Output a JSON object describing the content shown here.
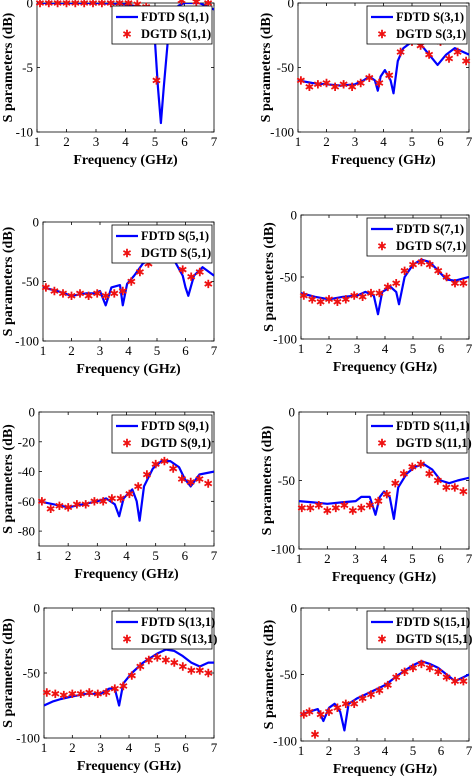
{
  "colors": {
    "fdtd": "#0000ff",
    "dgtd": "#ee1111",
    "axis": "#000000"
  },
  "chart_data": [
    {
      "type": "line",
      "x_label": "Frequency (GHz)",
      "y_label": "S parameters (dB)",
      "xlim": [
        1,
        7
      ],
      "ylim": [
        -10,
        0
      ],
      "x_ticks": [
        1,
        2,
        3,
        4,
        5,
        6,
        7
      ],
      "y_ticks": [
        0,
        -5,
        -10
      ],
      "legend_position": "top-right",
      "series": [
        {
          "name": "FDTD S(1,1)",
          "style": "line",
          "x": [
            1,
            2,
            3,
            4,
            4.5,
            4.8,
            5.0,
            5.1,
            5.2,
            5.3,
            5.45,
            5.6,
            5.8,
            6.0,
            6.5,
            7
          ],
          "y": [
            0,
            0,
            0,
            -0.1,
            -0.3,
            -1,
            -3,
            -6.5,
            -9.3,
            -6.5,
            -2.5,
            -0.8,
            -0.2,
            0,
            0,
            -0.5
          ]
        },
        {
          "name": "DGTD S(1,1)",
          "style": "marker",
          "x": [
            1.1,
            1.4,
            1.7,
            2.0,
            2.3,
            2.6,
            2.9,
            3.2,
            3.5,
            3.8,
            4.1,
            4.4,
            4.7,
            5.05,
            5.35,
            5.9,
            6.4,
            6.8
          ],
          "y": [
            0,
            0,
            0,
            0,
            0,
            0,
            0,
            0,
            0,
            0,
            0,
            -0.1,
            -0.3,
            -6,
            -2.5,
            0.2,
            0.1,
            0
          ]
        }
      ]
    },
    {
      "type": "line",
      "x_label": "Frequency (GHz)",
      "y_label": "S parameters (dB)",
      "xlim": [
        1,
        7
      ],
      "ylim": [
        -100,
        0
      ],
      "x_ticks": [
        1,
        2,
        3,
        4,
        5,
        6,
        7
      ],
      "y_ticks": [
        0,
        -50,
        -100
      ],
      "legend_position": "top-right",
      "series": [
        {
          "name": "FDTD S(3,1)",
          "style": "line",
          "x": [
            1,
            1.5,
            2,
            2.5,
            3,
            3.3,
            3.5,
            3.7,
            3.8,
            3.9,
            4.05,
            4.25,
            4.35,
            4.5,
            4.7,
            5,
            5.3,
            5.6,
            5.9,
            6.2,
            6.5,
            7
          ],
          "y": [
            -60,
            -62,
            -63,
            -64,
            -63,
            -60,
            -57,
            -60,
            -68,
            -57,
            -52,
            -60,
            -70,
            -45,
            -35,
            -30,
            -32,
            -40,
            -48,
            -40,
            -35,
            -40
          ]
        },
        {
          "name": "DGTD S(3,1)",
          "style": "marker",
          "x": [
            1.1,
            1.4,
            1.7,
            2.0,
            2.3,
            2.6,
            2.9,
            3.2,
            3.5,
            3.85,
            4.2,
            4.6,
            5.0,
            5.3,
            5.6,
            6.0,
            6.3,
            6.6,
            6.9
          ],
          "y": [
            -60,
            -65,
            -63,
            -62,
            -65,
            -63,
            -65,
            -62,
            -58,
            -62,
            -56,
            -38,
            -30,
            -33,
            -40,
            -30,
            -43,
            -38,
            -45
          ]
        }
      ]
    },
    {
      "type": "line",
      "x_label": "Frequency (GHz)",
      "y_label": "S parameters (dB)",
      "xlim": [
        1,
        7
      ],
      "ylim": [
        -100,
        0
      ],
      "x_ticks": [
        1,
        2,
        3,
        4,
        5,
        6,
        7
      ],
      "y_ticks": [
        0,
        -50,
        -100
      ],
      "legend_position": "top-right",
      "series": [
        {
          "name": "FDTD S(5,1)",
          "style": "line",
          "x": [
            1,
            1.5,
            2,
            2.5,
            2.8,
            3.0,
            3.2,
            3.4,
            3.7,
            3.8,
            3.95,
            4.2,
            4.5,
            5,
            5.3,
            5.6,
            5.9,
            6.0,
            6.1,
            6.3,
            6.6,
            7
          ],
          "y": [
            -55,
            -58,
            -62,
            -60,
            -60,
            -58,
            -70,
            -55,
            -53,
            -70,
            -52,
            -45,
            -35,
            -28,
            -25,
            -32,
            -45,
            -55,
            -62,
            -45,
            -38,
            -45
          ]
        },
        {
          "name": "DGTD S(5,1)",
          "style": "marker",
          "x": [
            1.1,
            1.4,
            1.7,
            2.0,
            2.3,
            2.6,
            2.9,
            3.2,
            3.5,
            3.8,
            4.1,
            4.4,
            4.7,
            5.0,
            5.3,
            5.6,
            5.9,
            6.2,
            6.5,
            6.8
          ],
          "y": [
            -55,
            -58,
            -60,
            -62,
            -60,
            -62,
            -60,
            -62,
            -60,
            -58,
            -50,
            -42,
            -35,
            -28,
            -28,
            -30,
            -40,
            -46,
            -42,
            -52
          ]
        }
      ]
    },
    {
      "type": "line",
      "x_label": "Frequency (GHz)",
      "y_label": "S parameters (dB)",
      "xlim": [
        1,
        7
      ],
      "ylim": [
        -100,
        0
      ],
      "x_ticks": [
        1,
        2,
        3,
        4,
        5,
        6,
        7
      ],
      "y_ticks": [
        0,
        -50,
        -100
      ],
      "legend_position": "top-right",
      "series": [
        {
          "name": "FDTD S(7,1)",
          "style": "line",
          "x": [
            1,
            1.5,
            2,
            2.5,
            3,
            3.3,
            3.6,
            3.75,
            3.9,
            4.2,
            4.4,
            4.5,
            4.7,
            5.0,
            5.3,
            5.6,
            5.9,
            6.2,
            6.5,
            7
          ],
          "y": [
            -63,
            -66,
            -68,
            -66,
            -65,
            -62,
            -65,
            -80,
            -62,
            -58,
            -62,
            -72,
            -50,
            -40,
            -36,
            -38,
            -45,
            -52,
            -53,
            -50
          ]
        },
        {
          "name": "DGTD S(7,1)",
          "style": "marker",
          "x": [
            1.1,
            1.4,
            1.7,
            2.0,
            2.3,
            2.6,
            2.9,
            3.2,
            3.5,
            3.8,
            4.1,
            4.4,
            4.7,
            5.0,
            5.3,
            5.6,
            5.9,
            6.2,
            6.5,
            6.8
          ],
          "y": [
            -65,
            -68,
            -70,
            -68,
            -70,
            -68,
            -65,
            -66,
            -63,
            -63,
            -58,
            -55,
            -45,
            -40,
            -38,
            -40,
            -45,
            -50,
            -55,
            -55
          ]
        }
      ]
    },
    {
      "type": "line",
      "x_label": "Frequency (GHz)",
      "y_label": "S parameters (dB)",
      "xlim": [
        1,
        7
      ],
      "ylim": [
        -90,
        0
      ],
      "x_ticks": [
        1,
        2,
        3,
        4,
        5,
        6,
        7
      ],
      "y_ticks": [
        0,
        -20,
        -40,
        -60,
        -80
      ],
      "legend_position": "top-right",
      "series": [
        {
          "name": "FDTD S(9,1)",
          "style": "line",
          "x": [
            1,
            1.5,
            2,
            2.5,
            3,
            3.3,
            3.6,
            3.75,
            3.9,
            4.2,
            4.35,
            4.45,
            4.6,
            4.9,
            5.2,
            5.5,
            5.8,
            6.0,
            6.2,
            6.5,
            7
          ],
          "y": [
            -60,
            -62,
            -64,
            -62,
            -60,
            -58,
            -62,
            -70,
            -58,
            -52,
            -60,
            -73,
            -50,
            -38,
            -33,
            -33,
            -37,
            -45,
            -50,
            -42,
            -40
          ]
        },
        {
          "name": "DGTD S(9,1)",
          "style": "marker",
          "x": [
            1.1,
            1.4,
            1.7,
            2.0,
            2.3,
            2.6,
            2.9,
            3.2,
            3.5,
            3.8,
            4.1,
            4.4,
            4.7,
            5.0,
            5.3,
            5.6,
            5.9,
            6.2,
            6.5,
            6.8
          ],
          "y": [
            -60,
            -65,
            -63,
            -64,
            -62,
            -62,
            -60,
            -60,
            -58,
            -58,
            -55,
            -50,
            -42,
            -35,
            -33,
            -38,
            -45,
            -47,
            -45,
            -48
          ]
        }
      ]
    },
    {
      "type": "line",
      "x_label": "Frequency (GHz)",
      "y_label": "S parameters (dB)",
      "xlim": [
        1,
        7
      ],
      "ylim": [
        -100,
        0
      ],
      "x_ticks": [
        1,
        2,
        3,
        4,
        5,
        6,
        7
      ],
      "y_ticks": [
        0,
        -50,
        -100
      ],
      "legend_position": "top-right",
      "series": [
        {
          "name": "FDTD S(11,1)",
          "style": "line",
          "x": [
            1,
            1.5,
            2,
            2.5,
            3,
            3.2,
            3.5,
            3.7,
            3.85,
            4.0,
            4.2,
            4.35,
            4.5,
            4.8,
            5.1,
            5.4,
            5.7,
            6.0,
            6.3,
            6.6,
            7
          ],
          "y": [
            -65,
            -66,
            -67,
            -66,
            -65,
            -62,
            -62,
            -75,
            -62,
            -58,
            -62,
            -78,
            -55,
            -45,
            -40,
            -38,
            -42,
            -50,
            -52,
            -50,
            -48
          ]
        },
        {
          "name": "DGTD S(11,1)",
          "style": "marker",
          "x": [
            1.1,
            1.4,
            1.7,
            2.0,
            2.3,
            2.6,
            2.9,
            3.2,
            3.5,
            3.8,
            4.1,
            4.4,
            4.7,
            5.0,
            5.3,
            5.6,
            5.9,
            6.2,
            6.5,
            6.8
          ],
          "y": [
            -70,
            -70,
            -68,
            -72,
            -70,
            -68,
            -72,
            -70,
            -68,
            -65,
            -60,
            -52,
            -45,
            -40,
            -38,
            -45,
            -50,
            -55,
            -55,
            -58
          ]
        }
      ]
    },
    {
      "type": "line",
      "x_label": "Frequency (GHz)",
      "y_label": "S parameters (dB)",
      "xlim": [
        1,
        7
      ],
      "ylim": [
        -100,
        0
      ],
      "x_ticks": [
        1,
        2,
        3,
        4,
        5,
        6,
        7
      ],
      "y_ticks": [
        0,
        -50,
        -100
      ],
      "legend_position": "top-right",
      "series": [
        {
          "name": "FDTD S(13,1)",
          "style": "line",
          "x": [
            1,
            1.3,
            1.6,
            2,
            2.5,
            3,
            3.3,
            3.5,
            3.65,
            3.8,
            4.1,
            4.5,
            5.0,
            5.3,
            5.6,
            5.9,
            6.2,
            6.5,
            6.8,
            7
          ],
          "y": [
            -75,
            -72,
            -70,
            -68,
            -66,
            -66,
            -62,
            -62,
            -75,
            -58,
            -50,
            -42,
            -35,
            -32,
            -33,
            -37,
            -42,
            -45,
            -42,
            -42
          ]
        },
        {
          "name": "DGTD S(13,1)",
          "style": "marker",
          "x": [
            1.1,
            1.4,
            1.7,
            2.0,
            2.3,
            2.6,
            2.9,
            3.2,
            3.5,
            3.8,
            4.1,
            4.4,
            4.7,
            5.0,
            5.3,
            5.6,
            5.9,
            6.2,
            6.5,
            6.8
          ],
          "y": [
            -65,
            -66,
            -67,
            -66,
            -66,
            -65,
            -66,
            -65,
            -62,
            -60,
            -52,
            -45,
            -40,
            -38,
            -40,
            -42,
            -45,
            -48,
            -48,
            -50
          ]
        }
      ]
    },
    {
      "type": "line",
      "x_label": "Frequency (GHz)",
      "y_label": "S parameters (dB)",
      "xlim": [
        1,
        7
      ],
      "ylim": [
        -100,
        0
      ],
      "x_ticks": [
        1,
        2,
        3,
        4,
        5,
        6,
        7
      ],
      "y_ticks": [
        0,
        -50,
        -100
      ],
      "legend_position": "top-right",
      "series": [
        {
          "name": "FDTD S(15,1)",
          "style": "line",
          "x": [
            1,
            1.3,
            1.6,
            1.8,
            2.0,
            2.2,
            2.4,
            2.55,
            2.7,
            3.0,
            3.3,
            3.6,
            4.0,
            4.5,
            5.0,
            5.3,
            5.6,
            5.9,
            6.2,
            6.5,
            6.8,
            7
          ],
          "y": [
            -80,
            -78,
            -76,
            -85,
            -75,
            -72,
            -78,
            -92,
            -72,
            -68,
            -65,
            -62,
            -58,
            -50,
            -43,
            -40,
            -42,
            -45,
            -50,
            -55,
            -52,
            -50
          ]
        },
        {
          "name": "DGTD S(15,1)",
          "style": "marker",
          "x": [
            1.1,
            1.3,
            1.5,
            1.7,
            2.0,
            2.3,
            2.6,
            2.9,
            3.2,
            3.5,
            3.8,
            4.1,
            4.4,
            4.7,
            5.0,
            5.3,
            5.6,
            5.9,
            6.2,
            6.5,
            6.8
          ],
          "y": [
            -80,
            -78,
            -95,
            -80,
            -78,
            -75,
            -72,
            -72,
            -68,
            -65,
            -62,
            -58,
            -52,
            -48,
            -45,
            -42,
            -45,
            -48,
            -52,
            -55,
            -55
          ]
        }
      ]
    }
  ]
}
